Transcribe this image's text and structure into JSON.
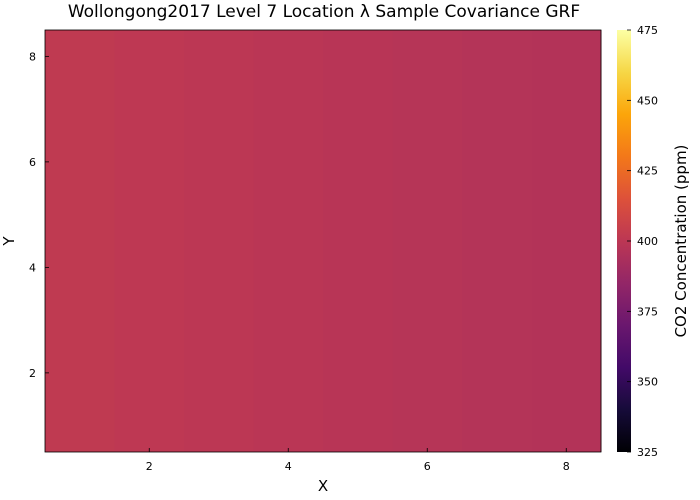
{
  "chart_data": {
    "type": "heatmap",
    "title": "Wollongong2017 Level 7 Location λ Sample Covariance GRF",
    "xlabel": "X",
    "ylabel": "Y",
    "colorbar_label": "CO2 Concentration (ppm)",
    "colormap": "inferno",
    "xlim": [
      0.5,
      8.5
    ],
    "ylim": [
      0.5,
      8.5
    ],
    "x_ticks": [
      2,
      4,
      6,
      8
    ],
    "y_ticks": [
      2,
      4,
      6,
      8
    ],
    "clim": [
      325,
      475
    ],
    "colorbar_ticks": [
      325,
      350,
      375,
      400,
      425,
      450,
      475
    ],
    "x_centers": [
      1,
      2,
      3,
      4,
      5,
      6,
      7,
      8
    ],
    "values_by_x": [
      401.5,
      400.8,
      400.0,
      399.3,
      398.6,
      397.9,
      397.2,
      396.6
    ],
    "grid": false
  }
}
